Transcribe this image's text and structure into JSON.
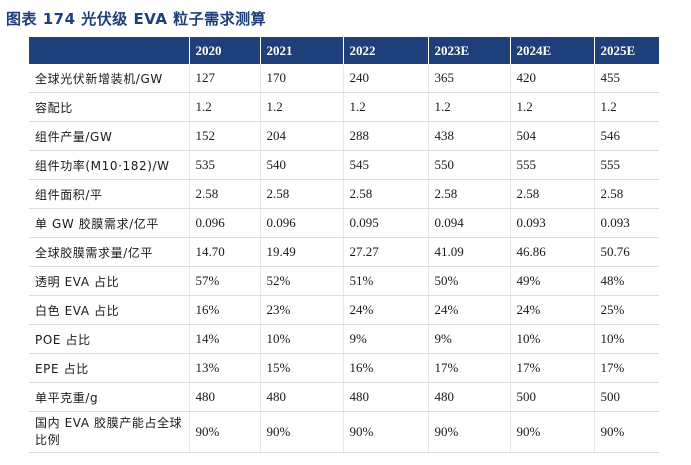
{
  "title": "图表 174 光伏级 EVA 粒子需求测算",
  "table": {
    "headers": [
      "",
      "2020",
      "2021",
      "2022",
      "2023E",
      "2024E",
      "2025E"
    ],
    "rows": [
      [
        "全球光伏新增装机/GW",
        "127",
        "170",
        "240",
        "365",
        "420",
        "455"
      ],
      [
        "容配比",
        "1.2",
        "1.2",
        "1.2",
        "1.2",
        "1.2",
        "1.2"
      ],
      [
        "组件产量/GW",
        "152",
        "204",
        "288",
        "438",
        "504",
        "546"
      ],
      [
        "组件功率(M10·182)/W",
        "535",
        "540",
        "545",
        "550",
        "555",
        "555"
      ],
      [
        "组件面积/平",
        "2.58",
        "2.58",
        "2.58",
        "2.58",
        "2.58",
        "2.58"
      ],
      [
        "单 GW 胶膜需求/亿平",
        "0.096",
        "0.096",
        "0.095",
        "0.094",
        "0.093",
        "0.093"
      ],
      [
        "全球胶膜需求量/亿平",
        "14.70",
        "19.49",
        "27.27",
        "41.09",
        "46.86",
        "50.76"
      ],
      [
        "透明 EVA 占比",
        "57%",
        "52%",
        "51%",
        "50%",
        "49%",
        "48%"
      ],
      [
        "白色 EVA 占比",
        "16%",
        "23%",
        "24%",
        "24%",
        "24%",
        "25%"
      ],
      [
        "POE 占比",
        "14%",
        "10%",
        "9%",
        "9%",
        "10%",
        "10%"
      ],
      [
        "EPE 占比",
        "13%",
        "15%",
        "16%",
        "17%",
        "17%",
        "17%"
      ],
      [
        "单平克重/g",
        "480",
        "480",
        "480",
        "480",
        "500",
        "500"
      ],
      [
        "国内 EVA 胶膜产能占全球比例",
        "90%",
        "90%",
        "90%",
        "90%",
        "90%",
        "90%"
      ]
    ]
  }
}
